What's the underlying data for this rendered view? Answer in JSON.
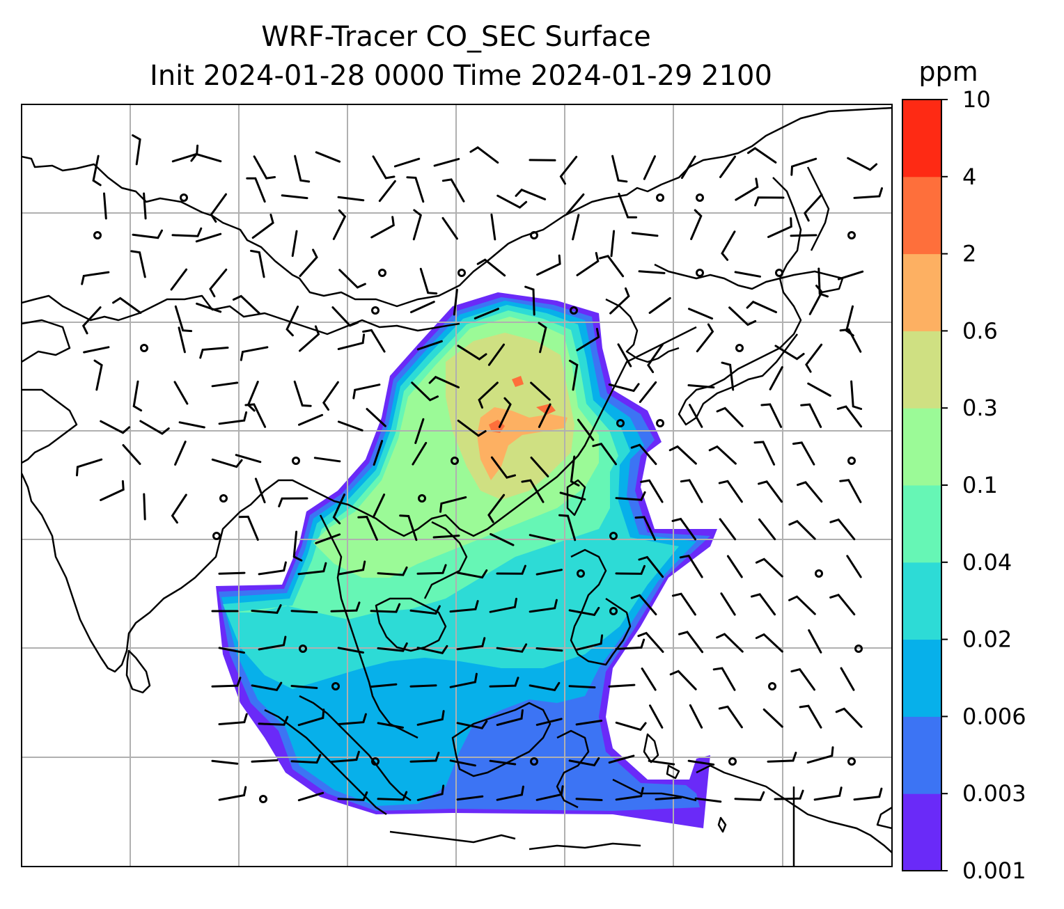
{
  "title": {
    "line1": "WRF-Tracer CO_SEC Surface",
    "line2": "Init 2024-01-28 0000 Time 2024-01-29 2100"
  },
  "colorbar": {
    "unit": "ppm",
    "levels": [
      "0.001",
      "0.003",
      "0.006",
      "0.02",
      "0.04",
      "0.1",
      "0.3",
      "0.6",
      "2",
      "4",
      "10"
    ],
    "colors": [
      "#6a2af8",
      "#3c74f4",
      "#07b0ea",
      "#2ddbd6",
      "#66f6b5",
      "#9bfa97",
      "#cfe082",
      "#fdb062",
      "#fe6f3b",
      "#fe2a14"
    ]
  },
  "map": {
    "coastline_color": "#000000",
    "grid_color": "#b0b0b0",
    "barb_color": "#000000"
  },
  "chart_data": {
    "type": "heatmap",
    "title": "WRF-Tracer CO_SEC Surface",
    "subtitle": "Init 2024-01-28 0000 Time 2024-01-29 2100",
    "colorbar_label": "ppm",
    "colorbar_levels": [
      0.001,
      0.003,
      0.006,
      0.02,
      0.04,
      0.1,
      0.3,
      0.6,
      2,
      4,
      10
    ],
    "grid": true,
    "overlay": "wind barbs"
  }
}
